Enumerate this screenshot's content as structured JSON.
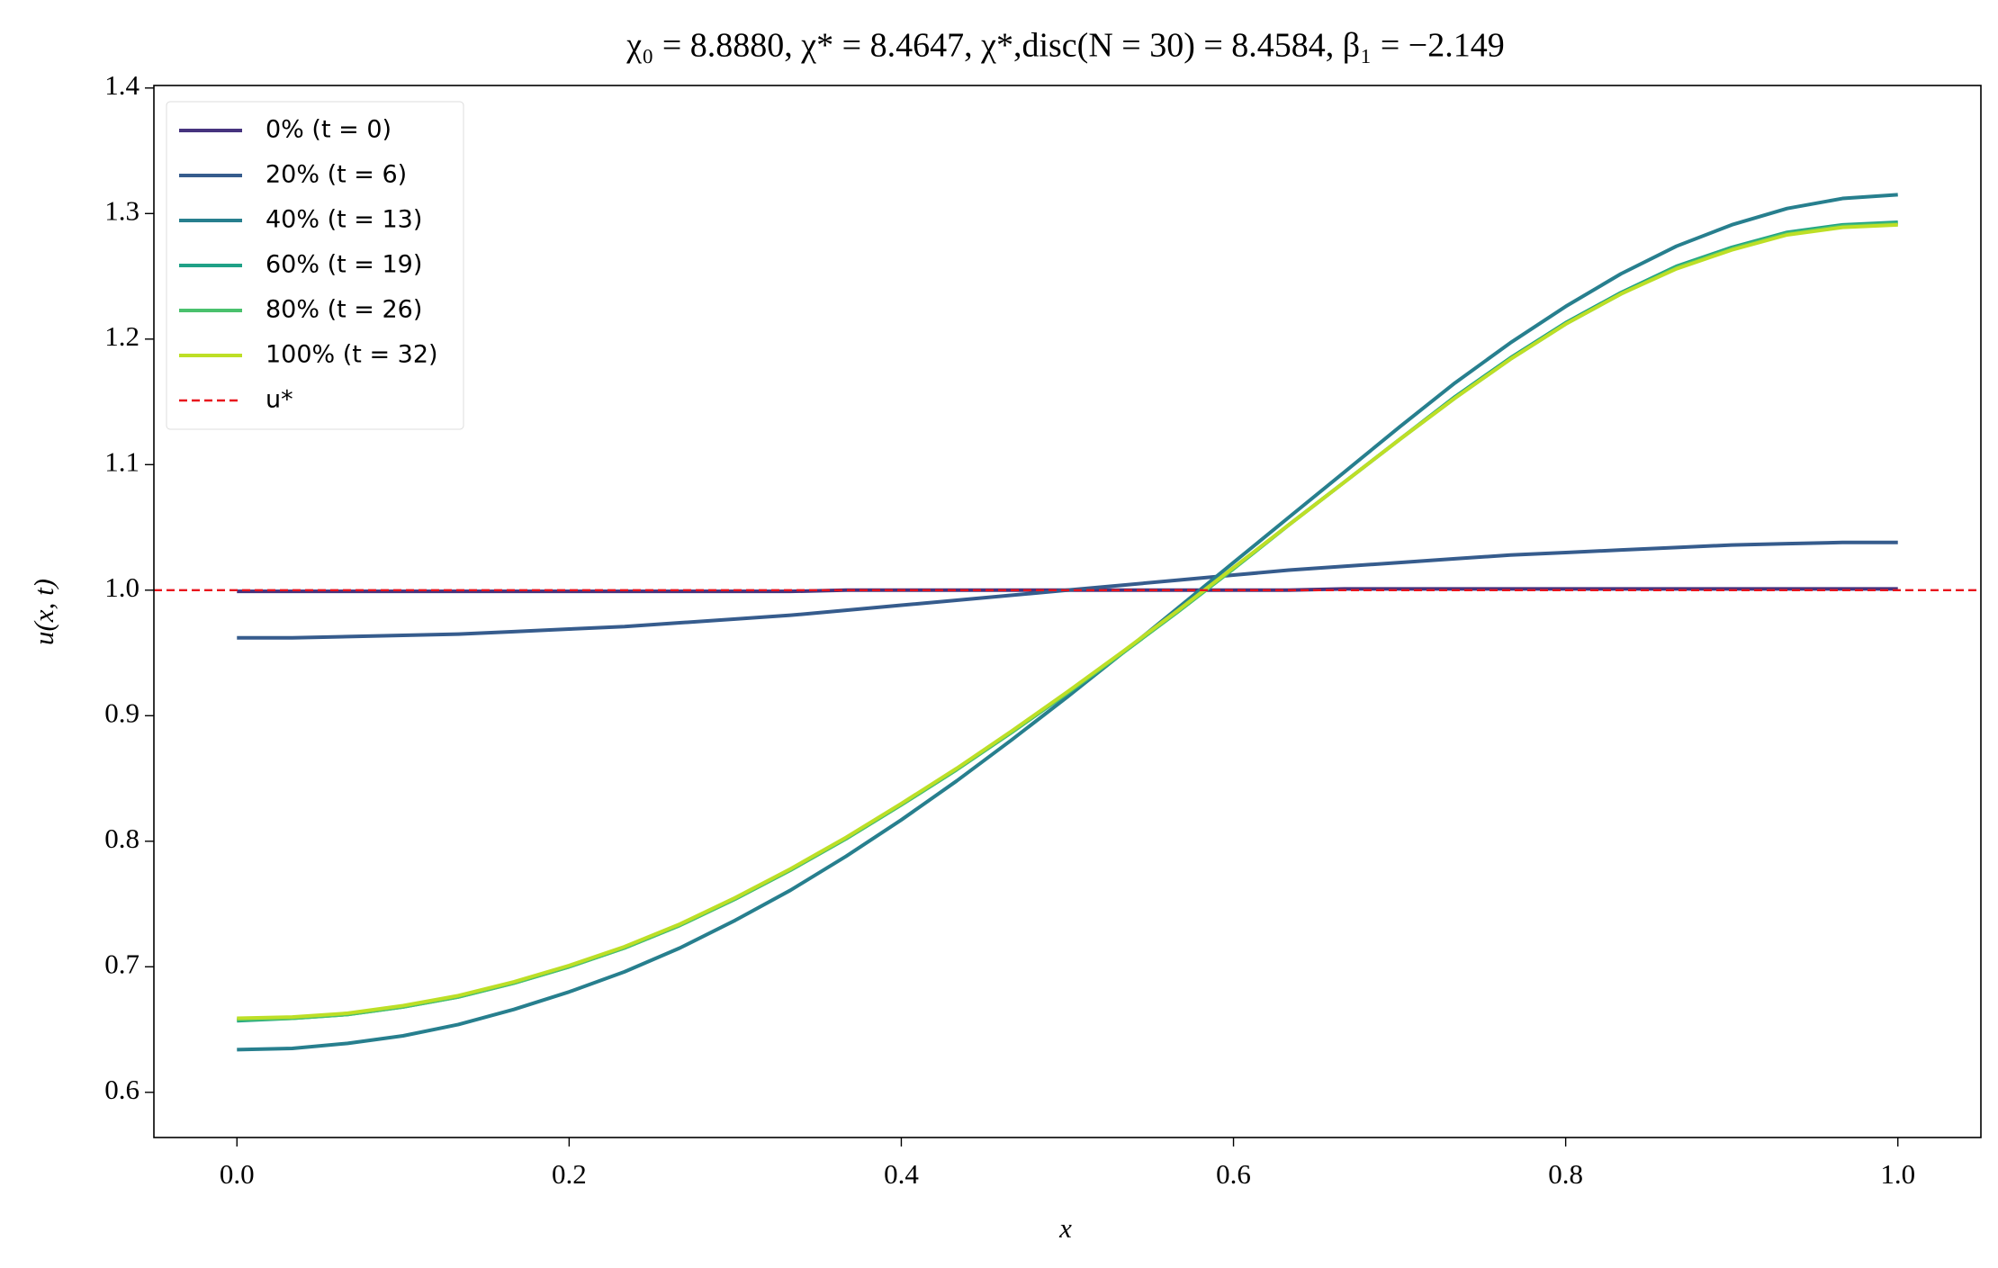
{
  "chart_data": {
    "type": "line",
    "title": "χ₀ = 8.8880, χ* = 8.4647, χ*,disc(N = 30) = 8.4584, β₁ = −2.149",
    "x_label": "x",
    "y_label": "u(x, t)",
    "x": [
      0,
      0.0333,
      0.0667,
      0.1,
      0.1333,
      0.1667,
      0.2,
      0.2333,
      0.2667,
      0.3,
      0.3333,
      0.3667,
      0.4,
      0.4333,
      0.4667,
      0.5,
      0.5333,
      0.5667,
      0.6,
      0.6333,
      0.6667,
      0.7,
      0.7333,
      0.7667,
      0.8,
      0.8333,
      0.8667,
      0.9,
      0.9333,
      0.9667,
      1
    ],
    "series": [
      {
        "name": "0% (t = 0)",
        "color": "#46337e",
        "values": [
          0.999,
          0.999,
          0.999,
          0.999,
          0.999,
          0.999,
          0.999,
          0.999,
          0.999,
          0.999,
          0.999,
          1.0,
          1.0,
          1.0,
          1.0,
          1.0,
          1.0,
          1.0,
          1.0,
          1.0,
          1.001,
          1.001,
          1.001,
          1.001,
          1.001,
          1.001,
          1.001,
          1.001,
          1.001,
          1.001,
          1.001
        ]
      },
      {
        "name": "20% (t = 6)",
        "color": "#365c8d",
        "values": [
          0.962,
          0.962,
          0.963,
          0.964,
          0.965,
          0.967,
          0.969,
          0.971,
          0.974,
          0.977,
          0.98,
          0.984,
          0.988,
          0.992,
          0.996,
          1.0,
          1.004,
          1.008,
          1.012,
          1.016,
          1.019,
          1.022,
          1.025,
          1.028,
          1.03,
          1.032,
          1.034,
          1.036,
          1.037,
          1.038,
          1.038
        ]
      },
      {
        "name": "40% (t = 13)",
        "color": "#277f8e",
        "values": [
          0.634,
          0.635,
          0.639,
          0.645,
          0.654,
          0.666,
          0.68,
          0.696,
          0.715,
          0.737,
          0.761,
          0.788,
          0.817,
          0.848,
          0.881,
          0.915,
          0.95,
          0.986,
          1.022,
          1.058,
          1.094,
          1.13,
          1.165,
          1.197,
          1.226,
          1.252,
          1.274,
          1.291,
          1.304,
          1.312,
          1.315
        ]
      },
      {
        "name": "60% (t = 19)",
        "color": "#1fa187",
        "values": [
          0.657,
          0.659,
          0.662,
          0.668,
          0.676,
          0.687,
          0.7,
          0.715,
          0.733,
          0.754,
          0.777,
          0.802,
          0.829,
          0.857,
          0.887,
          0.918,
          0.95,
          0.983,
          1.017,
          1.052,
          1.086,
          1.12,
          1.154,
          1.185,
          1.213,
          1.237,
          1.258,
          1.273,
          1.285,
          1.291,
          1.293
        ]
      },
      {
        "name": "80% (t = 26)",
        "color": "#4ac16d",
        "values": [
          0.658,
          0.659,
          0.662,
          0.668,
          0.676,
          0.687,
          0.7,
          0.715,
          0.733,
          0.754,
          0.777,
          0.802,
          0.829,
          0.857,
          0.887,
          0.918,
          0.95,
          0.983,
          1.017,
          1.052,
          1.086,
          1.12,
          1.153,
          1.184,
          1.212,
          1.236,
          1.257,
          1.272,
          1.284,
          1.29,
          1.292
        ]
      },
      {
        "name": "100% (t = 32)",
        "color": "#bddf26",
        "values": [
          0.659,
          0.66,
          0.663,
          0.669,
          0.677,
          0.688,
          0.701,
          0.716,
          0.734,
          0.755,
          0.778,
          0.803,
          0.83,
          0.858,
          0.888,
          0.919,
          0.951,
          0.984,
          1.018,
          1.052,
          1.086,
          1.12,
          1.153,
          1.184,
          1.212,
          1.236,
          1.256,
          1.271,
          1.283,
          1.289,
          1.291
        ]
      }
    ],
    "reference_line": {
      "name": "u*",
      "value": 1.0,
      "color": "#e8141c",
      "style": "dashed"
    },
    "xlim": [
      -0.05,
      1.05
    ],
    "ylim": [
      0.564,
      1.402
    ],
    "xticks": [
      {
        "value": 0,
        "label": "0.0"
      },
      {
        "value": 0.2,
        "label": "0.2"
      },
      {
        "value": 0.4,
        "label": "0.4"
      },
      {
        "value": 0.6,
        "label": "0.6"
      },
      {
        "value": 0.8,
        "label": "0.8"
      },
      {
        "value": 1,
        "label": "1.0"
      }
    ],
    "yticks": [
      {
        "value": 0.6,
        "label": "0.6"
      },
      {
        "value": 0.7,
        "label": "0.7"
      },
      {
        "value": 0.8,
        "label": "0.8"
      },
      {
        "value": 0.9,
        "label": "0.9"
      },
      {
        "value": 1.0,
        "label": "1.0"
      },
      {
        "value": 1.1,
        "label": "1.1"
      },
      {
        "value": 1.2,
        "label": "1.2"
      },
      {
        "value": 1.3,
        "label": "1.3"
      },
      {
        "value": 1.4,
        "label": "1.4"
      }
    ],
    "legend": "upper left",
    "grid": false
  }
}
